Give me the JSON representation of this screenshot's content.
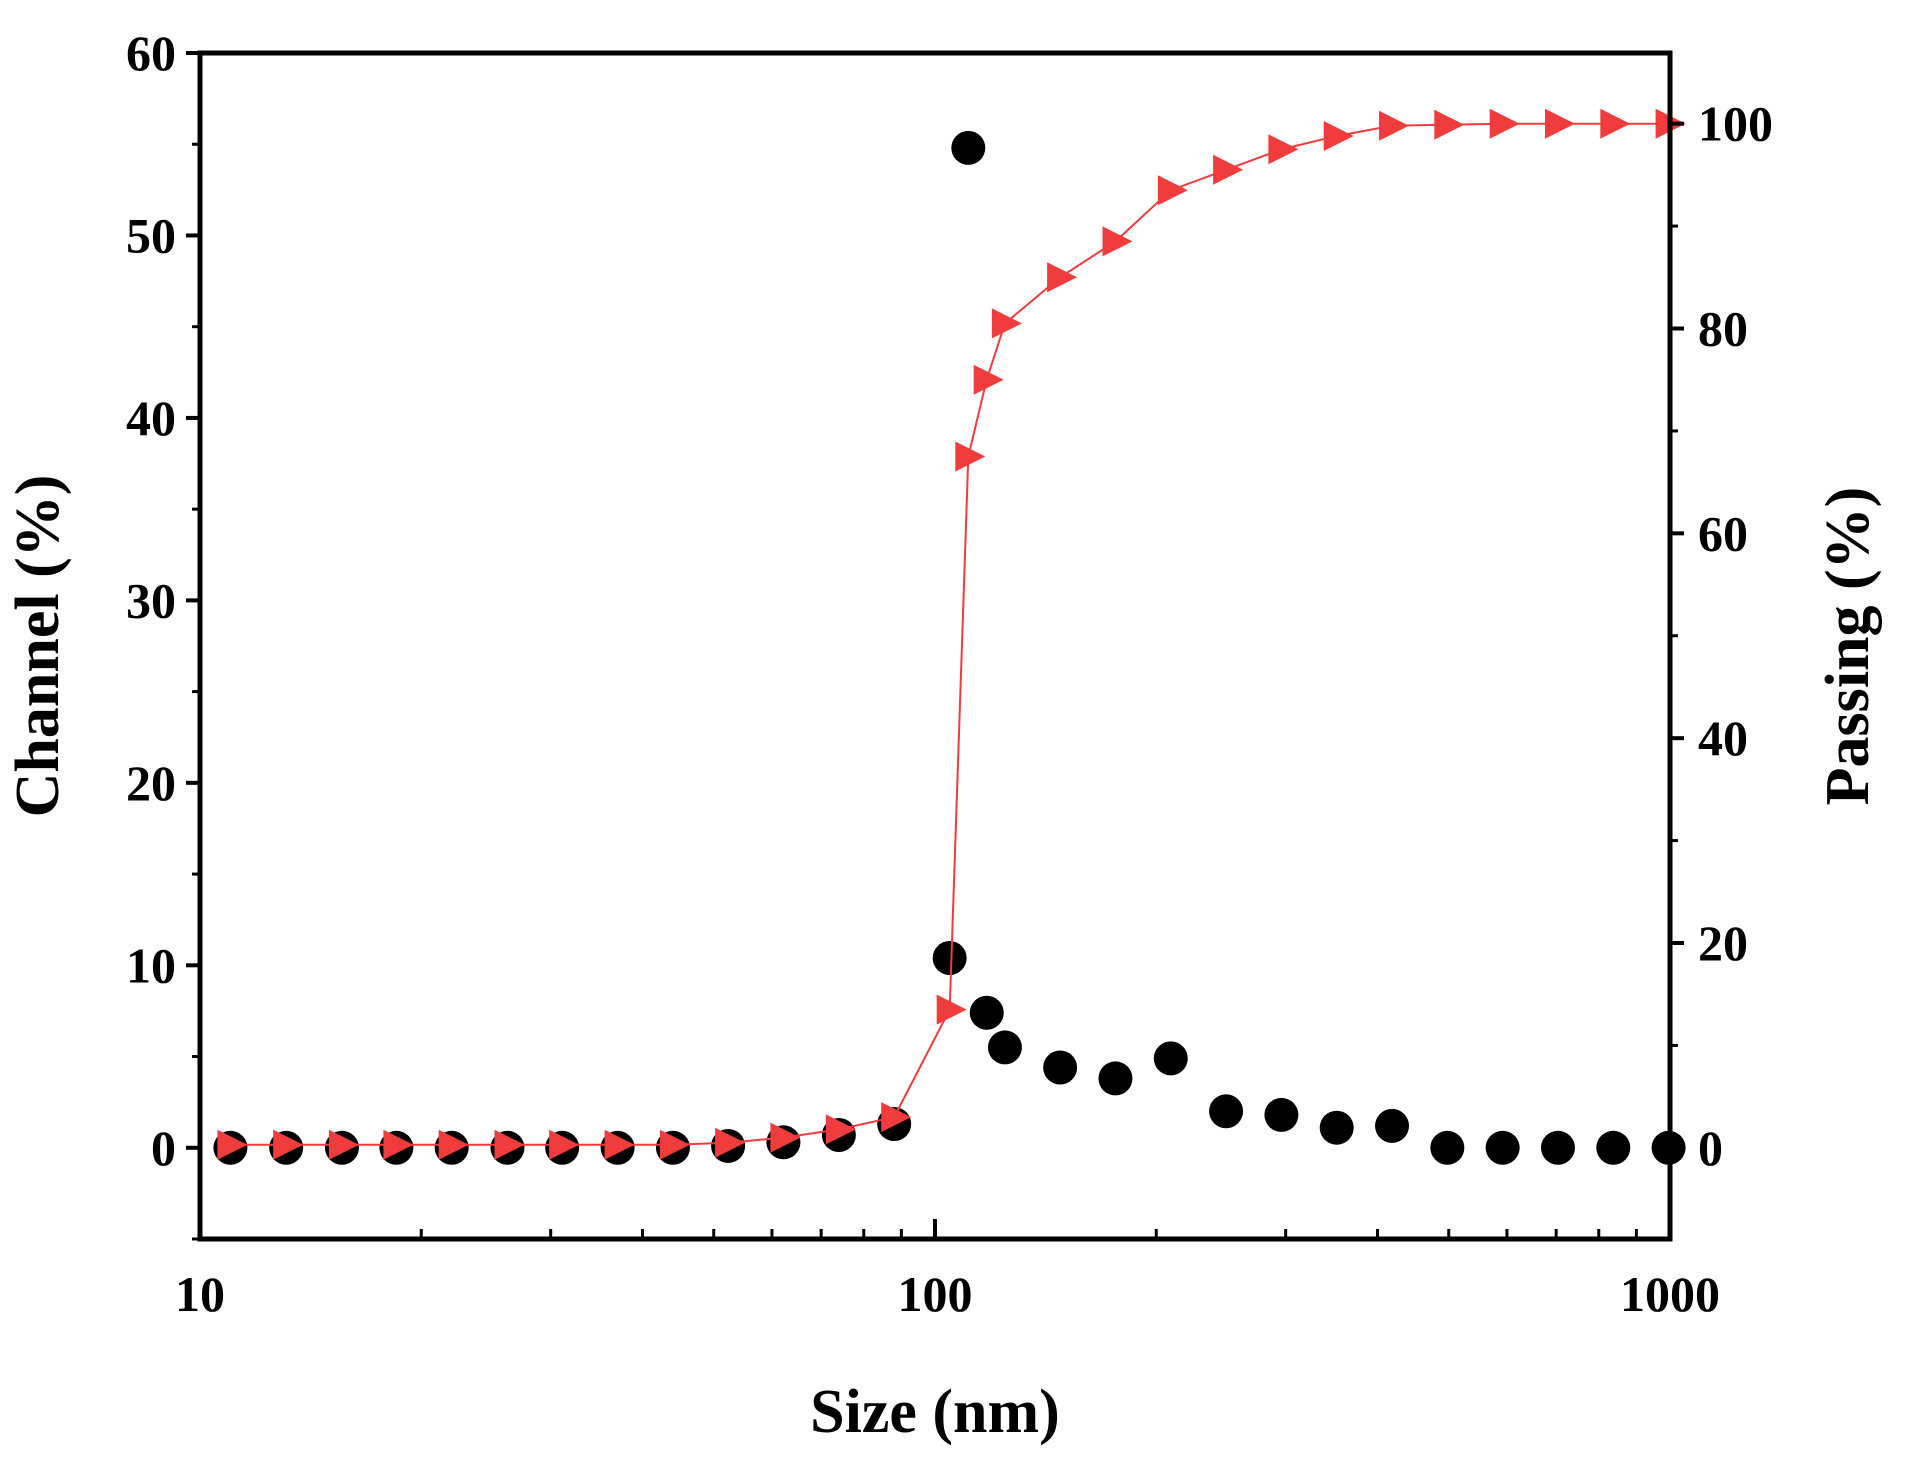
{
  "chart_data": {
    "type": "scatter",
    "title": "",
    "xlabel": "Size (nm)",
    "ylabel": "Channel (%)",
    "y2label": "Passing (%)",
    "xscale": "log",
    "xlim": [
      10,
      1000
    ],
    "ylim": [
      -5,
      60
    ],
    "y2lim": [
      -8.9,
      106.9
    ],
    "x_ticks": [
      10,
      100,
      1000
    ],
    "x_tick_labels": [
      "10",
      "100",
      "1000"
    ],
    "y_ticks": [
      0,
      10,
      20,
      30,
      40,
      50,
      60
    ],
    "y_tick_labels": [
      "0",
      "10",
      "20",
      "30",
      "40",
      "50",
      "60"
    ],
    "y2_ticks": [
      0,
      20,
      40,
      60,
      80,
      100
    ],
    "y2_tick_labels": [
      "0",
      "20",
      "40",
      "60",
      "80",
      "100"
    ],
    "grid": false,
    "legend": "none",
    "series": [
      {
        "name": "Channel",
        "axis": "left",
        "marker": "circle",
        "color": "#000000",
        "x": [
          11.0,
          13.1,
          15.6,
          18.5,
          22.0,
          26.2,
          31.1,
          37.0,
          44.0,
          52.3,
          62.2,
          74.0,
          88.0,
          104.7,
          111.0,
          117.6,
          124.5,
          148.0,
          176.0,
          209.3,
          248.9,
          296.0,
          352.0,
          418.6,
          497.8,
          592.0,
          704.0,
          837.2,
          995.6
        ],
        "values": [
          0,
          0,
          0,
          0,
          0,
          0,
          0,
          0,
          0,
          0.1,
          0.3,
          0.7,
          1.3,
          10.4,
          54.8,
          7.4,
          5.5,
          4.4,
          3.8,
          4.9,
          2.0,
          1.8,
          1.1,
          1.2,
          0,
          0,
          0,
          0,
          0
        ]
      },
      {
        "name": "Passing",
        "axis": "right",
        "marker": "triangle-right",
        "color": "#f03c3c",
        "x": [
          11.0,
          13.1,
          15.6,
          18.5,
          22.0,
          26.2,
          31.1,
          37.0,
          44.0,
          52.3,
          62.2,
          74.0,
          88.0,
          104.7,
          111.0,
          117.6,
          124.5,
          148.0,
          176.0,
          209.3,
          248.9,
          296.0,
          352.0,
          418.6,
          497.8,
          592.0,
          704.0,
          837.2,
          995.6
        ],
        "values": [
          0.3,
          0.3,
          0.3,
          0.3,
          0.3,
          0.3,
          0.3,
          0.3,
          0.3,
          0.5,
          1.0,
          1.8,
          3.0,
          13.5,
          67.5,
          75.0,
          80.5,
          85.0,
          88.5,
          93.5,
          95.5,
          97.5,
          98.8,
          99.8,
          99.9,
          100,
          100,
          100,
          100
        ]
      }
    ]
  }
}
